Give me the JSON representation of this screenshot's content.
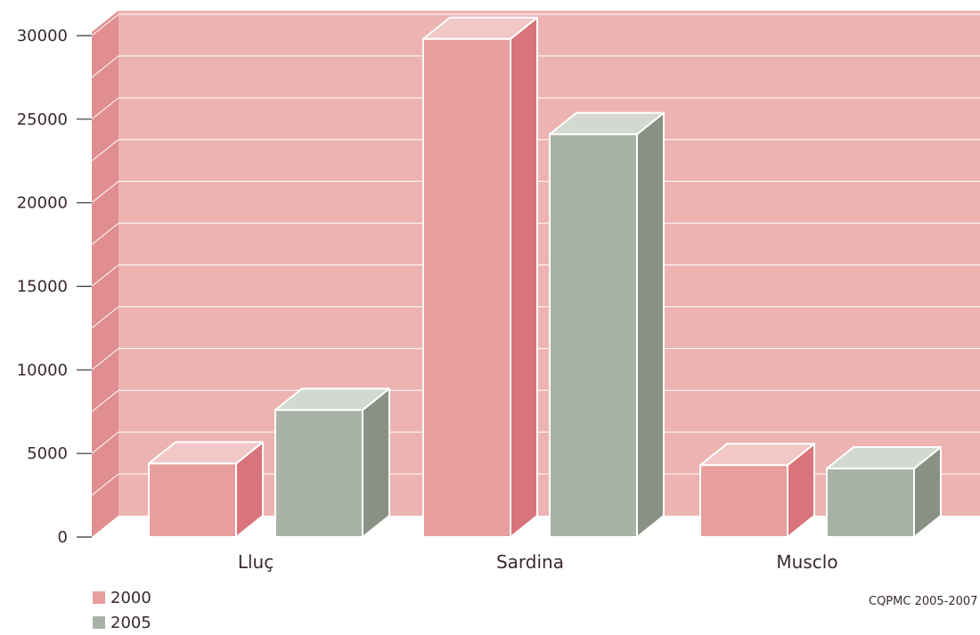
{
  "chart_data": {
    "type": "bar",
    "categories": [
      "Lluç",
      "Sardina",
      "Musclo"
    ],
    "series": [
      {
        "name": "2000",
        "values": [
          4400,
          29800,
          4300
        ]
      },
      {
        "name": "2005",
        "values": [
          7600,
          24100,
          4100
        ]
      }
    ],
    "ylim": [
      0,
      30000
    ],
    "yticks": [
      "0",
      "5000",
      "10000",
      "15000",
      "20000",
      "25000",
      "30000"
    ],
    "grid": true,
    "three_d": true,
    "legend_position": "bottom-left",
    "source": "CQPMC 2005-2007"
  },
  "colors": {
    "wall": "#ecb3b1",
    "side_wall": "#e08e90",
    "grid": "#ffffff",
    "series_2000": {
      "front": "#e79e9d",
      "side": "#d9747a",
      "top": "#f2c8c7"
    },
    "series_2005": {
      "front": "#a9b2a7",
      "side": "#8a9184",
      "top": "#d3d8d1"
    }
  }
}
